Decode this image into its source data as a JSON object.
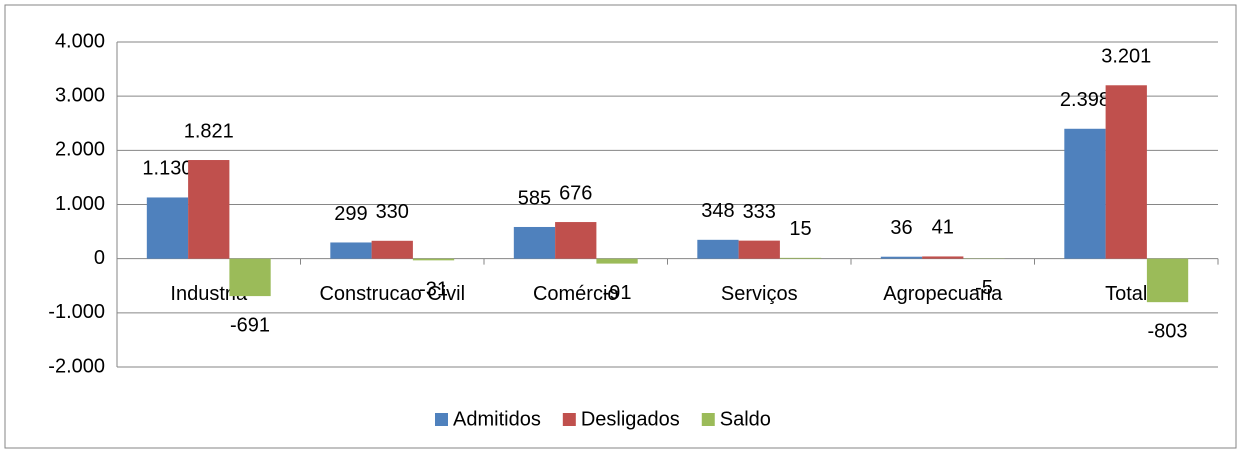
{
  "chart_data": {
    "type": "bar",
    "categories": [
      "Industria",
      "Construcao Civil",
      "Comércio",
      "Serviços",
      "Agropecuaria",
      "Total"
    ],
    "series": [
      {
        "name": "Admitidos",
        "color": "#4f81bd",
        "values": [
          1130,
          299,
          585,
          348,
          36,
          2398
        ],
        "value_labels": [
          "1.130",
          "299",
          "585",
          "348",
          "36",
          "2.398"
        ]
      },
      {
        "name": "Desligados",
        "color": "#c0504d",
        "values": [
          1821,
          330,
          676,
          333,
          41,
          3201
        ],
        "value_labels": [
          "1.821",
          "330",
          "676",
          "333",
          "41",
          "3.201"
        ]
      },
      {
        "name": "Saldo",
        "color": "#9bbb59",
        "values": [
          -691,
          -31,
          -91,
          15,
          -5,
          -803
        ],
        "value_labels": [
          "-691",
          "-31",
          "-91",
          "15",
          "-5",
          "-803"
        ]
      }
    ],
    "ylim": [
      -2000,
      4000
    ],
    "yticks": [
      {
        "value": -2000,
        "label": "-2.000"
      },
      {
        "value": -1000,
        "label": "-1.000"
      },
      0,
      {
        "value": 1000,
        "label": "1.000"
      },
      {
        "value": 2000,
        "label": "2.000"
      },
      {
        "value": 3000,
        "label": "3.000"
      },
      {
        "value": 4000,
        "label": "4.000"
      }
    ],
    "grid": true,
    "legend": "bottom"
  }
}
